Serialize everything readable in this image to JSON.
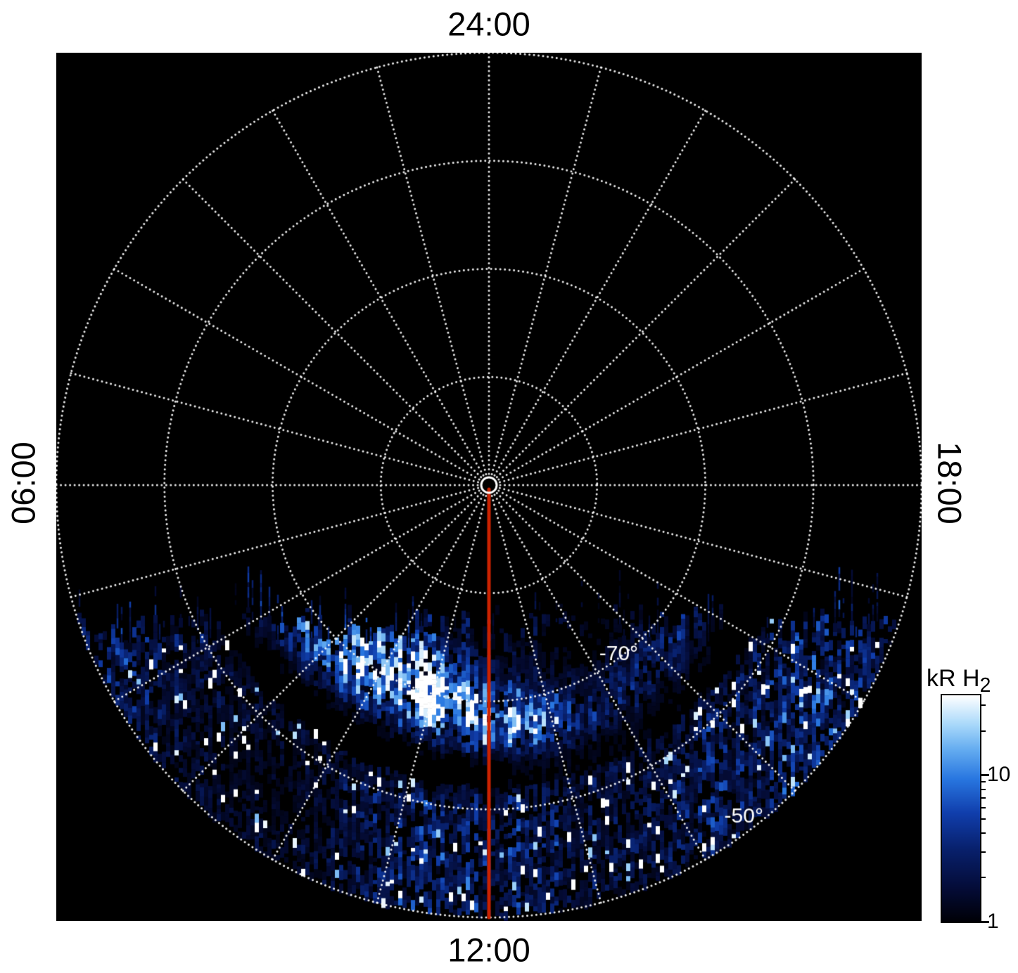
{
  "plot": {
    "bg": "#000000",
    "hour_labels": {
      "top": "24:00",
      "bottom": "12:00",
      "left": "06:00",
      "right": "18:00"
    },
    "lat_labels": [
      {
        "text": "-70°",
        "mlt": 14.5,
        "lat": -70.3
      },
      {
        "text": "-50°",
        "mlt": 14.5,
        "lat": -51.3
      }
    ]
  },
  "colorbar": {
    "title_main": "kR H",
    "title_sub": "2",
    "scale": "log",
    "min": 1,
    "max": 35,
    "ticks": [
      {
        "value": 10,
        "label": "10"
      },
      {
        "value": 1,
        "label": "1"
      }
    ],
    "minor_ticks": [
      2,
      3,
      4,
      5,
      6,
      7,
      8,
      9,
      20,
      30
    ]
  },
  "chart_data": {
    "type": "heatmap",
    "projection": "polar_local_time",
    "pole_lat_deg": -90,
    "outer_lat_deg": -50,
    "lat_circles_deg": [
      -80,
      -70,
      -60,
      -50
    ],
    "mlt_spoke_step_hours": 1,
    "mlt_labels": [
      {
        "mlt": 24,
        "label": "24:00",
        "position": "top"
      },
      {
        "mlt": 12,
        "label": "12:00",
        "position": "bottom"
      },
      {
        "mlt": 6,
        "label": "06:00",
        "position": "left"
      },
      {
        "mlt": 18,
        "label": "18:00",
        "position": "right"
      }
    ],
    "noon_meridian": {
      "mlt": 12,
      "color": "#cc2200",
      "to_lat": -50
    },
    "colorbar": {
      "scale": "log",
      "min_kR": 1,
      "max_kR": 35,
      "units": "kR H2",
      "tick_labels": [
        "1",
        "10"
      ]
    },
    "colormap_stops": [
      {
        "t": 0.0,
        "rgb": [
          0,
          0,
          6
        ]
      },
      {
        "t": 0.15,
        "rgb": [
          4,
          12,
          56
        ]
      },
      {
        "t": 0.32,
        "rgb": [
          8,
          32,
          108
        ]
      },
      {
        "t": 0.48,
        "rgb": [
          16,
          62,
          172
        ]
      },
      {
        "t": 0.63,
        "rgb": [
          40,
          118,
          224
        ]
      },
      {
        "t": 0.76,
        "rgb": [
          100,
          172,
          240
        ]
      },
      {
        "t": 0.87,
        "rgb": [
          168,
          216,
          250
        ]
      },
      {
        "t": 1.0,
        "rgb": [
          255,
          255,
          255
        ]
      }
    ],
    "emission": {
      "seed": 77,
      "coverage_mlt": [
        6.2,
        17.8
      ],
      "lat_range": [
        -80,
        -50
      ],
      "main_arc": {
        "center_lat": -68.5,
        "width_deg": 5,
        "peak_mlt": 10.2,
        "peak_kR": 35
      },
      "dark_gap": {
        "lat": -63.5,
        "width_deg": 3.2
      },
      "diffuse": {
        "lat_range": [
          -62,
          -50
        ],
        "typical_kR": 3
      }
    }
  }
}
